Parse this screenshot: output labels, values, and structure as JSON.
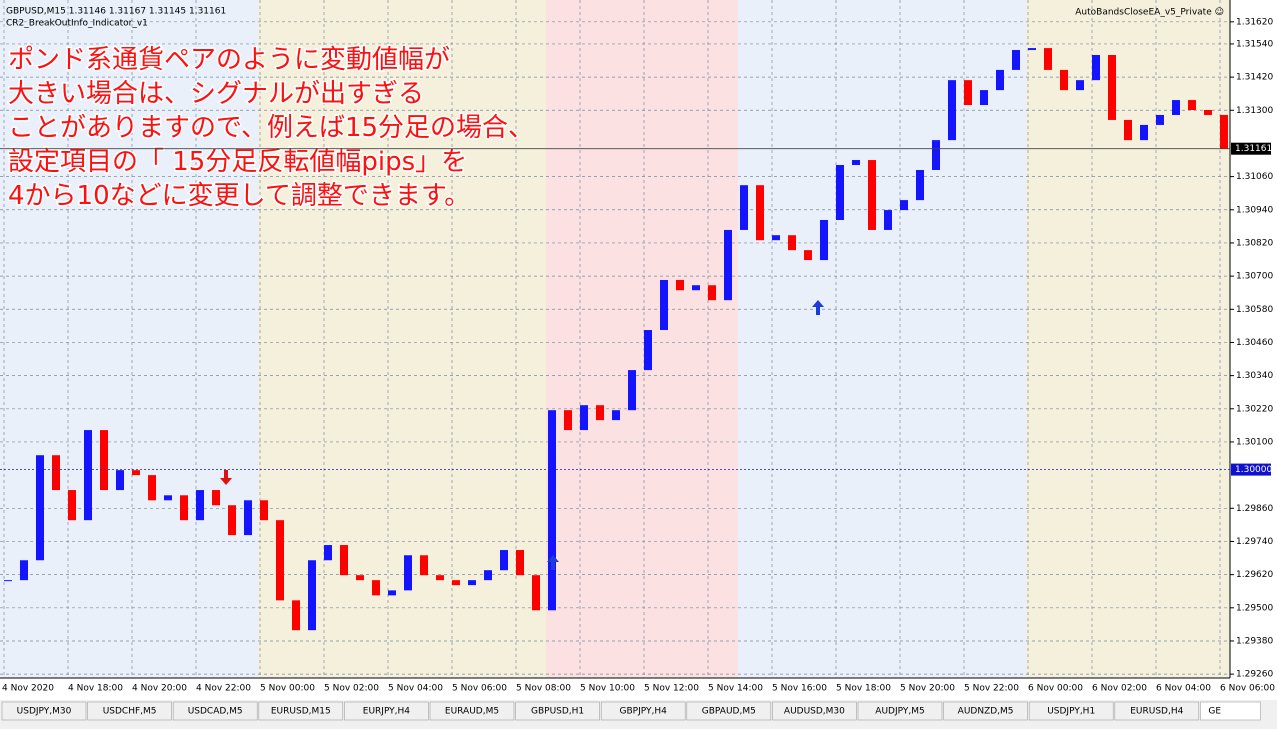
{
  "header": {
    "symbol_line": "GBPUSD,M15  1.31146 1.31167 1.31145 1.31161",
    "indicator": "CR2_BreakOutInfo_Indicator_v1",
    "expert": "AutoBandsCloseEA_v5_Private ☺"
  },
  "annotation": [
    "ポンド系通貨ペアのように変動値幅が",
    "大きい場合は、シグナルが出すぎる",
    "ことがありますので、例えば15分足の場合、",
    "設定項目の「 15分足反転値幅pips」を",
    "4から10などに変更して調整できます。"
  ],
  "tabs": [
    "USDJPY,M30",
    "USDCHF,M5",
    "USDCAD,M5",
    "EURUSD,M15",
    "EURJPY,H4",
    "EURAUD,M5",
    "GBPUSD,H1",
    "GBPJPY,H4",
    "GBPAUD,M5",
    "AUDUSD,M30",
    "AUDJPY,M5",
    "AUDNZD,M5",
    "USDJPY,H1",
    "EURUSD,H4",
    "GE"
  ],
  "chart_data": {
    "type": "candlestick",
    "up_color": "#1414ff",
    "down_color": "#ff0000",
    "grid": true,
    "ylim": [
      1.29246,
      1.31699
    ],
    "yticks": [
      {
        "value": 1.3162,
        "label": "1.31620"
      },
      {
        "value": 1.3154,
        "label": "1.31540"
      },
      {
        "value": 1.3142,
        "label": "1.31420"
      },
      {
        "value": 1.313,
        "label": "1.31300"
      },
      {
        "value": 1.3106,
        "label": "1.31060"
      },
      {
        "value": 1.3094,
        "label": "1.30940"
      },
      {
        "value": 1.3082,
        "label": "1.30820"
      },
      {
        "value": 1.307,
        "label": "1.30700"
      },
      {
        "value": 1.3058,
        "label": "1.30580"
      },
      {
        "value": 1.3046,
        "label": "1.30460"
      },
      {
        "value": 1.3034,
        "label": "1.30340"
      },
      {
        "value": 1.3022,
        "label": "1.30220"
      },
      {
        "value": 1.301,
        "label": "1.30100"
      },
      {
        "value": 1.2986,
        "label": "1.29860"
      },
      {
        "value": 1.2974,
        "label": "1.29740"
      },
      {
        "value": 1.2962,
        "label": "1.29620"
      },
      {
        "value": 1.295,
        "label": "1.29500"
      },
      {
        "value": 1.2938,
        "label": "1.29380"
      },
      {
        "value": 1.2926,
        "label": "1.29260"
      }
    ],
    "price_marks": [
      1.31161,
      {
        "value": 1.3,
        "label": "1.30000"
      }
    ],
    "xtick_labels": [
      "4 Nov 2020",
      "4 Nov 18:00",
      "4 Nov 20:00",
      "4 Nov 22:00",
      "5 Nov 00:00",
      "5 Nov 02:00",
      "5 Nov 04:00",
      "5 Nov 06:00",
      "5 Nov 08:00",
      "5 Nov 10:00",
      "5 Nov 12:00",
      "5 Nov 14:00",
      "5 Nov 16:00",
      "5 Nov 18:00",
      "5 Nov 20:00",
      "5 Nov 22:00",
      "6 Nov 00:00",
      "6 Nov 02:00",
      "6 Nov 04:00",
      "6 Nov 06:00"
    ],
    "close": [
      1.296,
      1.29672,
      1.30052,
      1.29926,
      1.29817,
      1.30143,
      1.29926,
      1.29998,
      1.2998,
      1.29889,
      1.29907,
      1.29817,
      1.29926,
      1.29871,
      1.29763,
      1.29889,
      1.29817,
      1.29527,
      1.29419,
      1.29672,
      1.29727,
      1.29618,
      1.296,
      1.29545,
      1.29563,
      1.2969,
      1.29618,
      1.296,
      1.29582,
      1.296,
      1.29636,
      1.29709,
      1.29618,
      1.29491,
      1.30215,
      1.30143,
      1.30233,
      1.30179,
      1.30215,
      1.3036,
      1.30505,
      1.30686,
      1.30649,
      1.30667,
      1.30613,
      1.30867,
      1.31029,
      1.3083,
      1.30848,
      1.30794,
      1.30758,
      1.30903,
      1.31102,
      1.3112,
      1.30867,
      1.30939,
      1.30975,
      1.31084,
      1.31192,
      1.31409,
      1.31319,
      1.31373,
      1.31446,
      1.31518,
      1.31525,
      1.31446,
      1.31373,
      1.31409,
      1.315,
      1.31265,
      1.31192,
      1.31247,
      1.31283,
      1.31337,
      1.31301,
      1.31283,
      1.31161
    ]
  }
}
